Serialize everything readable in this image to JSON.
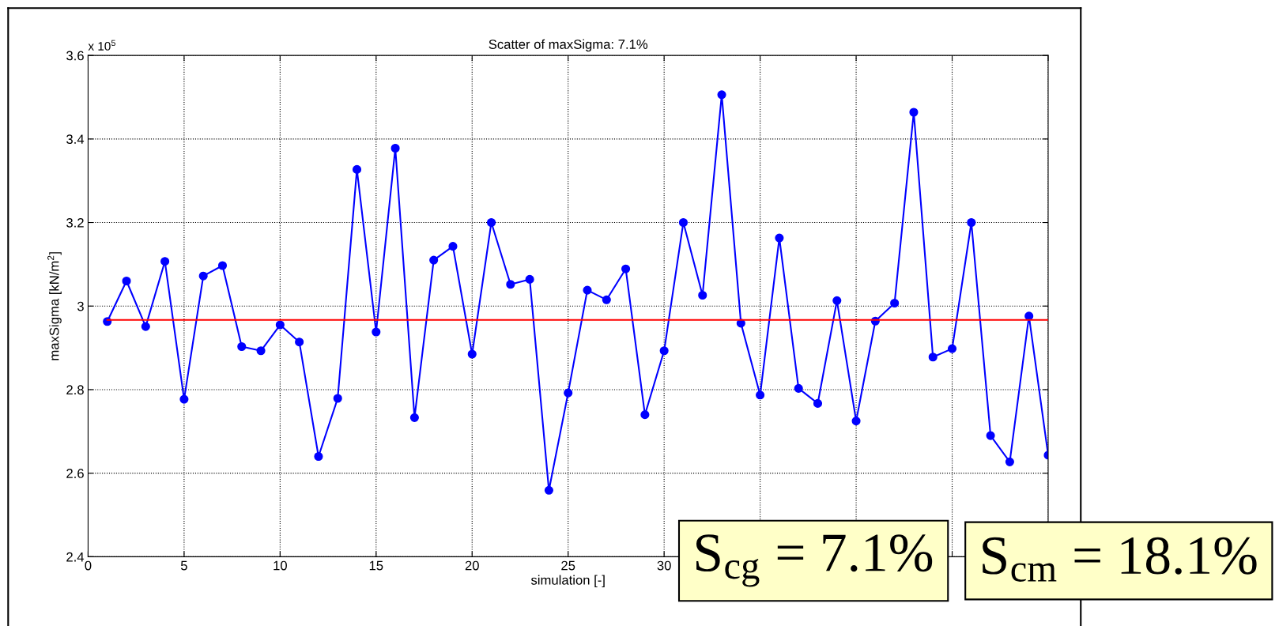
{
  "chart_data": {
    "type": "line",
    "title": "Scatter of maxSigma: 7.1%",
    "xlabel": "simulation [-]",
    "ylabel": "maxSigma [kN/m$^{2}$]",
    "x": [
      1,
      2,
      3,
      4,
      5,
      6,
      7,
      8,
      9,
      10,
      11,
      12,
      13,
      14,
      15,
      16,
      17,
      18,
      19,
      20,
      21,
      22,
      23,
      24,
      25,
      26,
      27,
      28,
      29,
      30,
      31,
      32,
      33,
      34,
      35,
      36,
      37,
      38,
      39,
      40,
      41,
      42,
      43,
      44,
      45,
      46,
      47,
      48,
      49,
      50
    ],
    "series": [
      {
        "color": "#0000ff",
        "values": [
          2.963,
          3.06,
          2.951,
          3.107,
          2.777,
          3.072,
          3.097,
          2.903,
          2.893,
          2.955,
          2.914,
          2.64,
          2.779,
          3.327,
          2.938,
          3.378,
          2.733,
          3.11,
          3.143,
          2.885,
          3.2,
          3.052,
          3.064,
          2.559,
          2.792,
          3.038,
          3.015,
          3.089,
          2.74,
          2.893,
          3.2,
          3.026,
          3.506,
          2.959,
          2.787,
          3.163,
          2.803,
          2.767,
          3.013,
          2.725,
          2.964,
          3.007,
          3.464,
          2.878,
          2.898,
          3.2,
          2.69,
          2.627,
          2.976,
          2.643
        ]
      }
    ],
    "marker": "circle",
    "line_style": "solid",
    "grid": true,
    "legend": false,
    "xlim": [
      0,
      50
    ],
    "xticks": [
      0,
      5,
      10,
      15,
      20,
      25,
      30,
      {
        "value": 35,
        "label": null
      },
      {
        "value": 40,
        "label": null
      },
      {
        "value": 45,
        "label": null
      },
      {
        "value": 50,
        "label": null
      }
    ],
    "ylim": [
      2.4,
      3.6
    ],
    "yticks": [
      2.4,
      2.6,
      2.8,
      3,
      3.2,
      3.4,
      3.6
    ],
    "ref_lines": [
      {
        "axis": "y",
        "value": 2.967,
        "color": "#ff0000"
      }
    ],
    "annotations": [
      "x 10$^{5}$",
      "S$_{cg}$ = 7.1%",
      "S$_{cm}$ = 18.1%"
    ]
  }
}
